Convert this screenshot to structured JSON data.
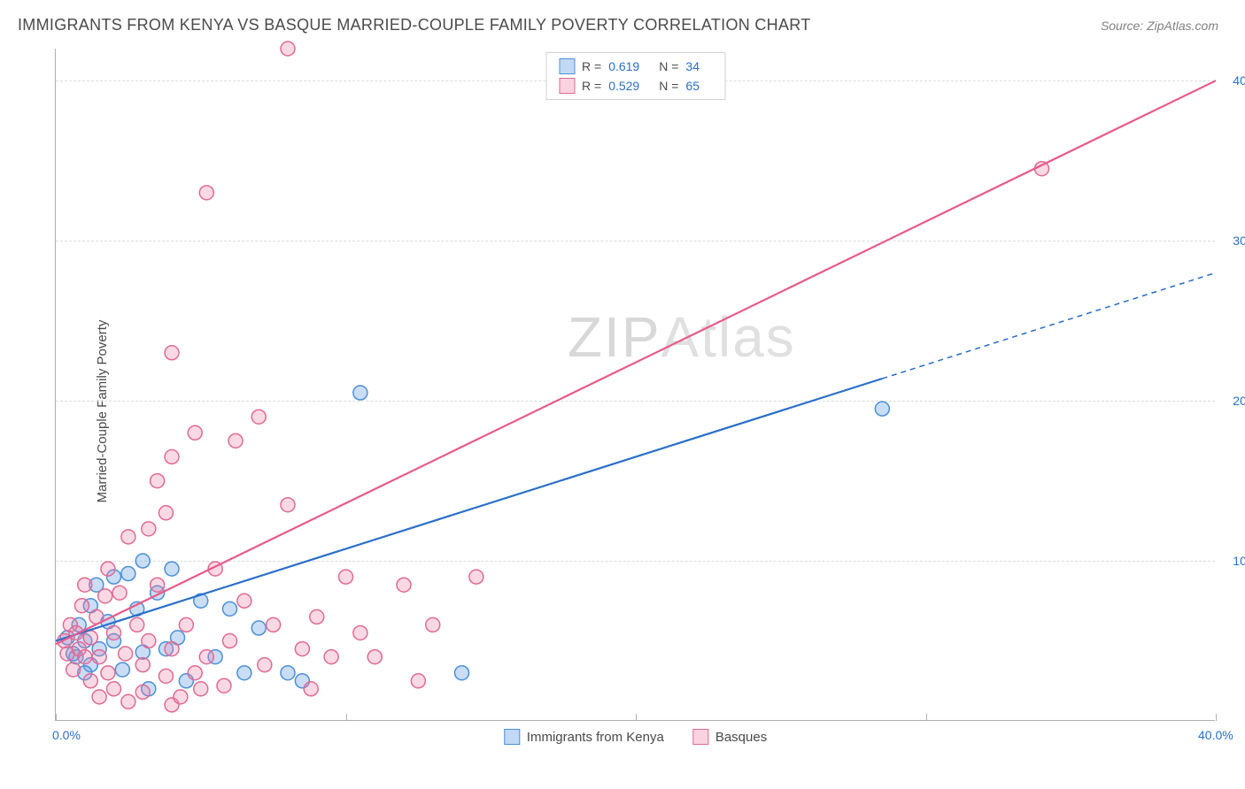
{
  "header": {
    "title": "IMMIGRANTS FROM KENYA VS BASQUE MARRIED-COUPLE FAMILY POVERTY CORRELATION CHART",
    "source_prefix": "Source: ",
    "source_name": "ZipAtlas.com"
  },
  "watermark": {
    "bold": "ZIP",
    "thin": "Atlas"
  },
  "chart": {
    "type": "scatter",
    "xlim": [
      0,
      40
    ],
    "ylim": [
      0,
      42
    ],
    "x_tick_positions": [
      0,
      10,
      20,
      30,
      40
    ],
    "x_tick_labels_shown": {
      "0": "0.0%",
      "40": "40.0%"
    },
    "y_gridlines": [
      10,
      20,
      30,
      40
    ],
    "y_tick_labels": {
      "10": "10.0%",
      "20": "20.0%",
      "30": "30.0%",
      "40": "40.0%"
    },
    "ylabel": "Married-Couple Family Poverty",
    "background_color": "#ffffff",
    "grid_color": "#dcdcdc",
    "axis_color": "#b0b0b0",
    "label_color": "#2b6fc9",
    "marker_radius": 8,
    "marker_stroke_width": 1.5,
    "series": [
      {
        "key": "kenya",
        "label": "Immigrants from Kenya",
        "color_fill": "rgba(100,160,230,0.35)",
        "color_stroke": "#4b8fd8",
        "R": "0.619",
        "N": "34",
        "trend": {
          "x1": 0,
          "y1": 5.0,
          "x2": 40,
          "y2": 28.0,
          "solid_until_x": 28.5,
          "line_color": "#2b6fc9",
          "line_width": 2.2
        },
        "points": [
          [
            0.4,
            5.2
          ],
          [
            0.7,
            4.0
          ],
          [
            0.8,
            6.0
          ],
          [
            1.0,
            5.0
          ],
          [
            1.2,
            7.2
          ],
          [
            1.2,
            3.5
          ],
          [
            1.4,
            8.5
          ],
          [
            1.5,
            4.5
          ],
          [
            1.8,
            6.2
          ],
          [
            2.0,
            9.0
          ],
          [
            2.0,
            5.0
          ],
          [
            2.3,
            3.2
          ],
          [
            2.5,
            9.2
          ],
          [
            2.8,
            7.0
          ],
          [
            3.0,
            10.0
          ],
          [
            3.0,
            4.3
          ],
          [
            3.2,
            2.0
          ],
          [
            3.5,
            8.0
          ],
          [
            3.8,
            4.5
          ],
          [
            4.0,
            9.5
          ],
          [
            4.2,
            5.2
          ],
          [
            4.5,
            2.5
          ],
          [
            5.0,
            7.5
          ],
          [
            5.5,
            4.0
          ],
          [
            6.0,
            7.0
          ],
          [
            6.5,
            3.0
          ],
          [
            7.0,
            5.8
          ],
          [
            8.0,
            3.0
          ],
          [
            8.5,
            2.5
          ],
          [
            10.5,
            20.5
          ],
          [
            14.0,
            3.0
          ],
          [
            28.5,
            19.5
          ],
          [
            1.0,
            3.0
          ],
          [
            0.6,
            4.2
          ]
        ]
      },
      {
        "key": "basques",
        "label": "Basques",
        "color_fill": "rgba(240,130,165,0.30)",
        "color_stroke": "#e06a94",
        "R": "0.529",
        "N": "65",
        "trend": {
          "x1": 0,
          "y1": 4.8,
          "x2": 40,
          "y2": 40.0,
          "solid_until_x": 40,
          "line_color": "#e85a8a",
          "line_width": 2.2
        },
        "points": [
          [
            0.3,
            5.0
          ],
          [
            0.4,
            4.2
          ],
          [
            0.5,
            6.0
          ],
          [
            0.6,
            3.2
          ],
          [
            0.7,
            5.5
          ],
          [
            0.8,
            4.5
          ],
          [
            0.9,
            7.2
          ],
          [
            1.0,
            4.0
          ],
          [
            1.0,
            8.5
          ],
          [
            1.2,
            5.2
          ],
          [
            1.2,
            2.5
          ],
          [
            1.4,
            6.5
          ],
          [
            1.5,
            4.0
          ],
          [
            1.5,
            1.5
          ],
          [
            1.7,
            7.8
          ],
          [
            1.8,
            3.0
          ],
          [
            2.0,
            5.5
          ],
          [
            2.0,
            2.0
          ],
          [
            2.2,
            8.0
          ],
          [
            2.4,
            4.2
          ],
          [
            2.5,
            1.2
          ],
          [
            2.8,
            6.0
          ],
          [
            3.0,
            3.5
          ],
          [
            3.0,
            1.8
          ],
          [
            3.2,
            5.0
          ],
          [
            3.5,
            8.5
          ],
          [
            3.8,
            2.8
          ],
          [
            4.0,
            4.5
          ],
          [
            4.0,
            1.0
          ],
          [
            4.3,
            1.5
          ],
          [
            4.5,
            6.0
          ],
          [
            4.8,
            3.0
          ],
          [
            5.0,
            2.0
          ],
          [
            5.2,
            4.0
          ],
          [
            5.5,
            9.5
          ],
          [
            5.8,
            2.2
          ],
          [
            6.0,
            5.0
          ],
          [
            6.2,
            17.5
          ],
          [
            6.5,
            7.5
          ],
          [
            7.0,
            19.0
          ],
          [
            7.2,
            3.5
          ],
          [
            7.5,
            6.0
          ],
          [
            8.0,
            13.5
          ],
          [
            8.5,
            4.5
          ],
          [
            8.8,
            2.0
          ],
          [
            9.0,
            6.5
          ],
          [
            9.5,
            4.0
          ],
          [
            10.0,
            9.0
          ],
          [
            10.5,
            5.5
          ],
          [
            11.0,
            4.0
          ],
          [
            12.0,
            8.5
          ],
          [
            12.5,
            2.5
          ],
          [
            13.0,
            6.0
          ],
          [
            14.5,
            9.0
          ],
          [
            3.5,
            15.0
          ],
          [
            4.0,
            16.5
          ],
          [
            4.8,
            18.0
          ],
          [
            4.0,
            23.0
          ],
          [
            3.8,
            13.0
          ],
          [
            3.2,
            12.0
          ],
          [
            5.2,
            33.0
          ],
          [
            8.0,
            42.0
          ],
          [
            34.0,
            34.5
          ],
          [
            2.5,
            11.5
          ],
          [
            1.8,
            9.5
          ]
        ]
      }
    ],
    "legend_bottom": [
      {
        "swatch": "blue",
        "label_key": "legend.kenya"
      },
      {
        "swatch": "pink",
        "label_key": "legend.basques"
      }
    ]
  },
  "legend": {
    "kenya": "Immigrants from Kenya",
    "basques": "Basques",
    "R_label": "R  =",
    "N_label": "N  ="
  }
}
